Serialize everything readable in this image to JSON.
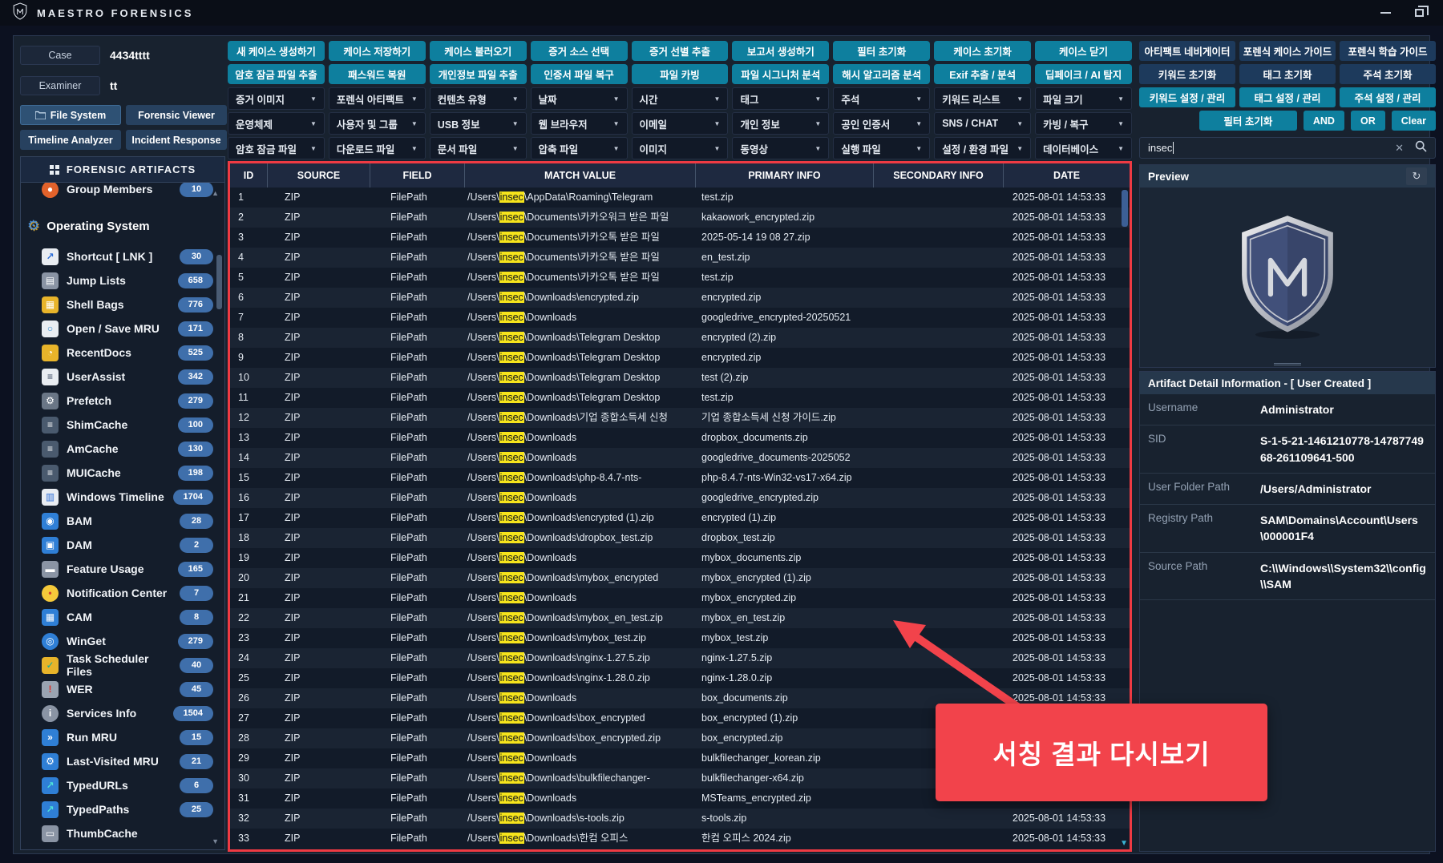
{
  "colors": {
    "accent_teal": "#0e7f9e",
    "annotation_red": "#f2434b",
    "table_border_red": "#ee3a43",
    "keyword_highlight": "#f6e41c",
    "badge_blue": "#3f6fab"
  },
  "titlebar": {
    "app_name": "MAESTRO FORENSICS"
  },
  "case_panel": {
    "case_label": "Case",
    "case_value": "4434tttt",
    "examiner_label": "Examiner",
    "examiner_value": "tt",
    "nav_buttons": [
      "File System",
      "Forensic Viewer",
      "Timeline Analyzer",
      "Incident Response"
    ]
  },
  "sidebar": {
    "title": "FORENSIC ARTIFACTS",
    "items": [
      {
        "label": "Group Members",
        "count": "10",
        "icon": "group-members-icon",
        "glyph": "●",
        "bg": "#e2622b",
        "round": true,
        "partial": true
      },
      {
        "type": "section",
        "label": "Operating System",
        "icon": "operating-system-gears-icon",
        "glyph": "⚙"
      },
      {
        "label": "Shortcut [ LNK ]",
        "count": "30",
        "icon": "shortcut-icon",
        "glyph": "↗",
        "bg": "#e9edf2",
        "fg": "#2f6fd8"
      },
      {
        "label": "Jump Lists",
        "count": "658",
        "icon": "jump-lists-icon",
        "glyph": "▤",
        "bg": "#8a94a4"
      },
      {
        "label": "Shell Bags",
        "count": "776",
        "icon": "shell-bags-icon",
        "glyph": "▦",
        "bg": "#e8b42a"
      },
      {
        "label": "Open / Save MRU",
        "count": "171",
        "icon": "open-save-mru-icon",
        "glyph": "○",
        "bg": "#e9edf2",
        "fg": "#3a8fd0"
      },
      {
        "label": "RecentDocs",
        "count": "525",
        "icon": "recentdocs-icon",
        "glyph": "◔",
        "bg": "#e8b42a"
      },
      {
        "label": "UserAssist",
        "count": "342",
        "icon": "userassist-icon",
        "glyph": "≡",
        "bg": "#e9edf2",
        "fg": "#32425c"
      },
      {
        "label": "Prefetch",
        "count": "279",
        "icon": "prefetch-icon",
        "glyph": "⚙",
        "bg": "#6a7686"
      },
      {
        "label": "ShimCache",
        "count": "100",
        "icon": "shimcache-database-icon",
        "glyph": "≡",
        "bg": "#4a5a6e"
      },
      {
        "label": "AmCache",
        "count": "130",
        "icon": "amcache-database-icon",
        "glyph": "≡",
        "bg": "#4a5a6e"
      },
      {
        "label": "MUICache",
        "count": "198",
        "icon": "muicache-database-icon",
        "glyph": "≡",
        "bg": "#4a5a6e"
      },
      {
        "label": "Windows Timeline",
        "count": "1704",
        "icon": "windows-timeline-icon",
        "glyph": "▥",
        "bg": "#e9edf2",
        "fg": "#2f6fd8"
      },
      {
        "label": "BAM",
        "count": "28",
        "icon": "bam-monitor-icon",
        "glyph": "◉",
        "bg": "#2f7fd6"
      },
      {
        "label": "DAM",
        "count": "2",
        "icon": "dam-monitor-icon",
        "glyph": "▣",
        "bg": "#2f7fd6"
      },
      {
        "label": "Feature Usage",
        "count": "165",
        "icon": "feature-usage-icon",
        "glyph": "▬",
        "bg": "#8a94a4"
      },
      {
        "label": "Notification Center",
        "count": "7",
        "icon": "notification-bell-icon",
        "glyph": "•",
        "bg": "#f5c93a",
        "fg": "#d04030",
        "round": true
      },
      {
        "label": "CAM",
        "count": "8",
        "icon": "cam-window-icon",
        "glyph": "▦",
        "bg": "#2f7fd6"
      },
      {
        "label": "WinGet",
        "count": "279",
        "icon": "winget-icon",
        "glyph": "◎",
        "bg": "#2f7fd6",
        "round": true
      },
      {
        "label": "Task Scheduler Files",
        "count": "40",
        "icon": "task-scheduler-icon",
        "glyph": "✓",
        "bg": "#e8b42a",
        "fg": "#0ba9a0"
      },
      {
        "label": "WER",
        "count": "45",
        "icon": "wer-warning-icon",
        "glyph": "!",
        "bg": "#9aa4b2",
        "fg": "#d8332a"
      },
      {
        "label": "Services Info",
        "count": "1504",
        "icon": "services-info-icon",
        "glyph": "i",
        "bg": "#8a94a4",
        "round": true
      },
      {
        "label": "Run MRU",
        "count": "15",
        "icon": "run-mru-icon",
        "glyph": "»",
        "bg": "#2f7fd6"
      },
      {
        "label": "Last-Visited MRU",
        "count": "21",
        "icon": "last-visited-mru-icon",
        "glyph": "⚙",
        "bg": "#2f7fd6"
      },
      {
        "label": "TypedURLs",
        "count": "6",
        "icon": "typedurls-icon",
        "glyph": "↗",
        "bg": "#2f7fd6",
        "fg": "#4de0d8"
      },
      {
        "label": "TypedPaths",
        "count": "25",
        "icon": "typedpaths-icon",
        "glyph": "↗",
        "bg": "#2f7fd6",
        "fg": "#4de0d8"
      },
      {
        "label": "ThumbCache",
        "count": "",
        "icon": "thumbcache-icon",
        "glyph": "▭",
        "bg": "#8a94a4"
      }
    ]
  },
  "toolbar": {
    "action_row1": [
      "새 케이스 생성하기",
      "케이스 저장하기",
      "케이스 불러오기",
      "증거 소스 선택",
      "증거 선별 추출",
      "보고서 생성하기",
      "필터 초기화",
      "케이스 초기화",
      "케이스 닫기"
    ],
    "action_row2": [
      "암호 잠금 파일 추출",
      "패스워드 복원",
      "개인정보 파일 추출",
      "인증서 파일 복구",
      "파일 카빙",
      "파일 시그니처 분석",
      "해시 알고리즘 분석",
      "Exif 추출 / 분석",
      "딥페이크 / AI 탐지"
    ],
    "filter_row1": [
      "증거 이미지",
      "포렌식 아티팩트",
      "컨텐츠 유형",
      "날짜",
      "시간",
      "태그",
      "주석",
      "키워드 리스트",
      "파일 크기"
    ],
    "filter_row2": [
      "운영체제",
      "사용자 및 그룹",
      "USB 정보",
      "웹 브라우저",
      "이메일",
      "개인 정보",
      "공인 인증서",
      "SNS / CHAT",
      "카빙 / 복구"
    ],
    "filter_row3": [
      "암호 잠금 파일",
      "다운로드 파일",
      "문서 파일",
      "압축 파일",
      "이미지",
      "동영상",
      "실행 파일",
      "설정 / 환경 파일",
      "데이터베이스"
    ]
  },
  "table": {
    "columns": [
      "ID",
      "SOURCE",
      "FIELD",
      "MATCH VALUE",
      "PRIMARY INFO",
      "SECONDARY INFO",
      "DATE"
    ],
    "defaults": {
      "source": "ZIP",
      "field": "FilePath",
      "pre": "/Users\\",
      "hl": "insec",
      "date": "2025-08-01 14:53:33",
      "secondary": ""
    },
    "rows": [
      {
        "id": "1",
        "post": "\\AppData\\Roaming\\Telegram",
        "primary": "test.zip"
      },
      {
        "id": "2",
        "post": "\\Documents\\카카오워크 받은 파일",
        "primary": "kakaowork_encrypted.zip"
      },
      {
        "id": "3",
        "post": "\\Documents\\카카오톡 받은 파일",
        "primary": "2025-05-14 19 08 27.zip"
      },
      {
        "id": "4",
        "post": "\\Documents\\카카오톡 받은 파일",
        "primary": "en_test.zip"
      },
      {
        "id": "5",
        "post": "\\Documents\\카카오톡 받은 파일",
        "primary": "test.zip"
      },
      {
        "id": "6",
        "post": "\\Downloads\\encrypted.zip",
        "primary": "encrypted.zip"
      },
      {
        "id": "7",
        "post": "\\Downloads",
        "primary": "googledrive_encrypted-20250521"
      },
      {
        "id": "8",
        "post": "\\Downloads\\Telegram Desktop",
        "primary": "encrypted (2).zip"
      },
      {
        "id": "9",
        "post": "\\Downloads\\Telegram Desktop",
        "primary": "encrypted.zip"
      },
      {
        "id": "10",
        "post": "\\Downloads\\Telegram Desktop",
        "primary": "test (2).zip"
      },
      {
        "id": "11",
        "post": "\\Downloads\\Telegram Desktop",
        "primary": "test.zip"
      },
      {
        "id": "12",
        "post": "\\Downloads\\기업 종합소득세 신청",
        "primary": "기업 종합소득세 신청 가이드.zip"
      },
      {
        "id": "13",
        "post": "\\Downloads",
        "primary": "dropbox_documents.zip"
      },
      {
        "id": "14",
        "post": "\\Downloads",
        "primary": "googledrive_documents-2025052"
      },
      {
        "id": "15",
        "post": "\\Downloads\\php-8.4.7-nts-",
        "primary": "php-8.4.7-nts-Win32-vs17-x64.zip"
      },
      {
        "id": "16",
        "post": "\\Downloads",
        "primary": "googledrive_encrypted.zip"
      },
      {
        "id": "17",
        "post": "\\Downloads\\encrypted (1).zip",
        "primary": "encrypted (1).zip"
      },
      {
        "id": "18",
        "post": "\\Downloads\\dropbox_test.zip",
        "primary": "dropbox_test.zip"
      },
      {
        "id": "19",
        "post": "\\Downloads",
        "primary": "mybox_documents.zip"
      },
      {
        "id": "20",
        "post": "\\Downloads\\mybox_encrypted",
        "primary": "mybox_encrypted (1).zip"
      },
      {
        "id": "21",
        "post": "\\Downloads",
        "primary": "mybox_encrypted.zip"
      },
      {
        "id": "22",
        "post": "\\Downloads\\mybox_en_test.zip",
        "primary": "mybox_en_test.zip"
      },
      {
        "id": "23",
        "post": "\\Downloads\\mybox_test.zip",
        "primary": "mybox_test.zip"
      },
      {
        "id": "24",
        "post": "\\Downloads\\nginx-1.27.5.zip",
        "primary": "nginx-1.27.5.zip"
      },
      {
        "id": "25",
        "post": "\\Downloads\\nginx-1.28.0.zip",
        "primary": "nginx-1.28.0.zip"
      },
      {
        "id": "26",
        "post": "\\Downloads",
        "primary": "box_documents.zip"
      },
      {
        "id": "27",
        "post": "\\Downloads\\box_encrypted",
        "primary": "box_encrypted (1).zip"
      },
      {
        "id": "28",
        "post": "\\Downloads\\box_encrypted.zip",
        "primary": "box_encrypted.zip"
      },
      {
        "id": "29",
        "post": "\\Downloads",
        "primary": "bulkfilechanger_korean.zip"
      },
      {
        "id": "30",
        "post": "\\Downloads\\bulkfilechanger-",
        "primary": "bulkfilechanger-x64.zip"
      },
      {
        "id": "31",
        "post": "\\Downloads",
        "primary": "MSTeams_encrypted.zip"
      },
      {
        "id": "32",
        "post": "\\Downloads\\s-tools.zip",
        "primary": "s-tools.zip"
      },
      {
        "id": "33",
        "post": "\\Downloads\\한컴 오피스",
        "primary": "한컴 오피스 2024.zip"
      }
    ]
  },
  "right_panel": {
    "nav_row": [
      "아티팩트 네비게이터",
      "포렌식 케이스 가이드",
      "포렌식 학습 가이드"
    ],
    "reset_row": [
      "키워드 초기화",
      "태그 초기화",
      "주석 초기화"
    ],
    "manage_row": [
      "키워드 설정 / 관리",
      "태그 설정 / 관리",
      "주석 설정 / 관리"
    ],
    "filter_reset": "필터 초기화",
    "logic_buttons": [
      "AND",
      "OR",
      "Clear"
    ],
    "search": {
      "value": "insec"
    },
    "preview": {
      "title": "Preview",
      "logo_letter": "M"
    },
    "detail": {
      "title": "Artifact Detail Information  -  [ User Created ]",
      "rows": [
        {
          "label": "Username",
          "value": "Administrator"
        },
        {
          "label": "SID",
          "value": "S-1-5-21-1461210778-1478774968-261109641-500"
        },
        {
          "label": "User Folder Path",
          "value": "/Users/Administrator"
        },
        {
          "label": "Registry Path",
          "value": "SAM\\Domains\\Account\\Users\\000001F4"
        },
        {
          "label": "Source Path",
          "value": "C:\\\\Windows\\\\System32\\\\config\\\\SAM"
        }
      ]
    }
  },
  "annotation": {
    "text": "서칭 결과 다시보기"
  }
}
